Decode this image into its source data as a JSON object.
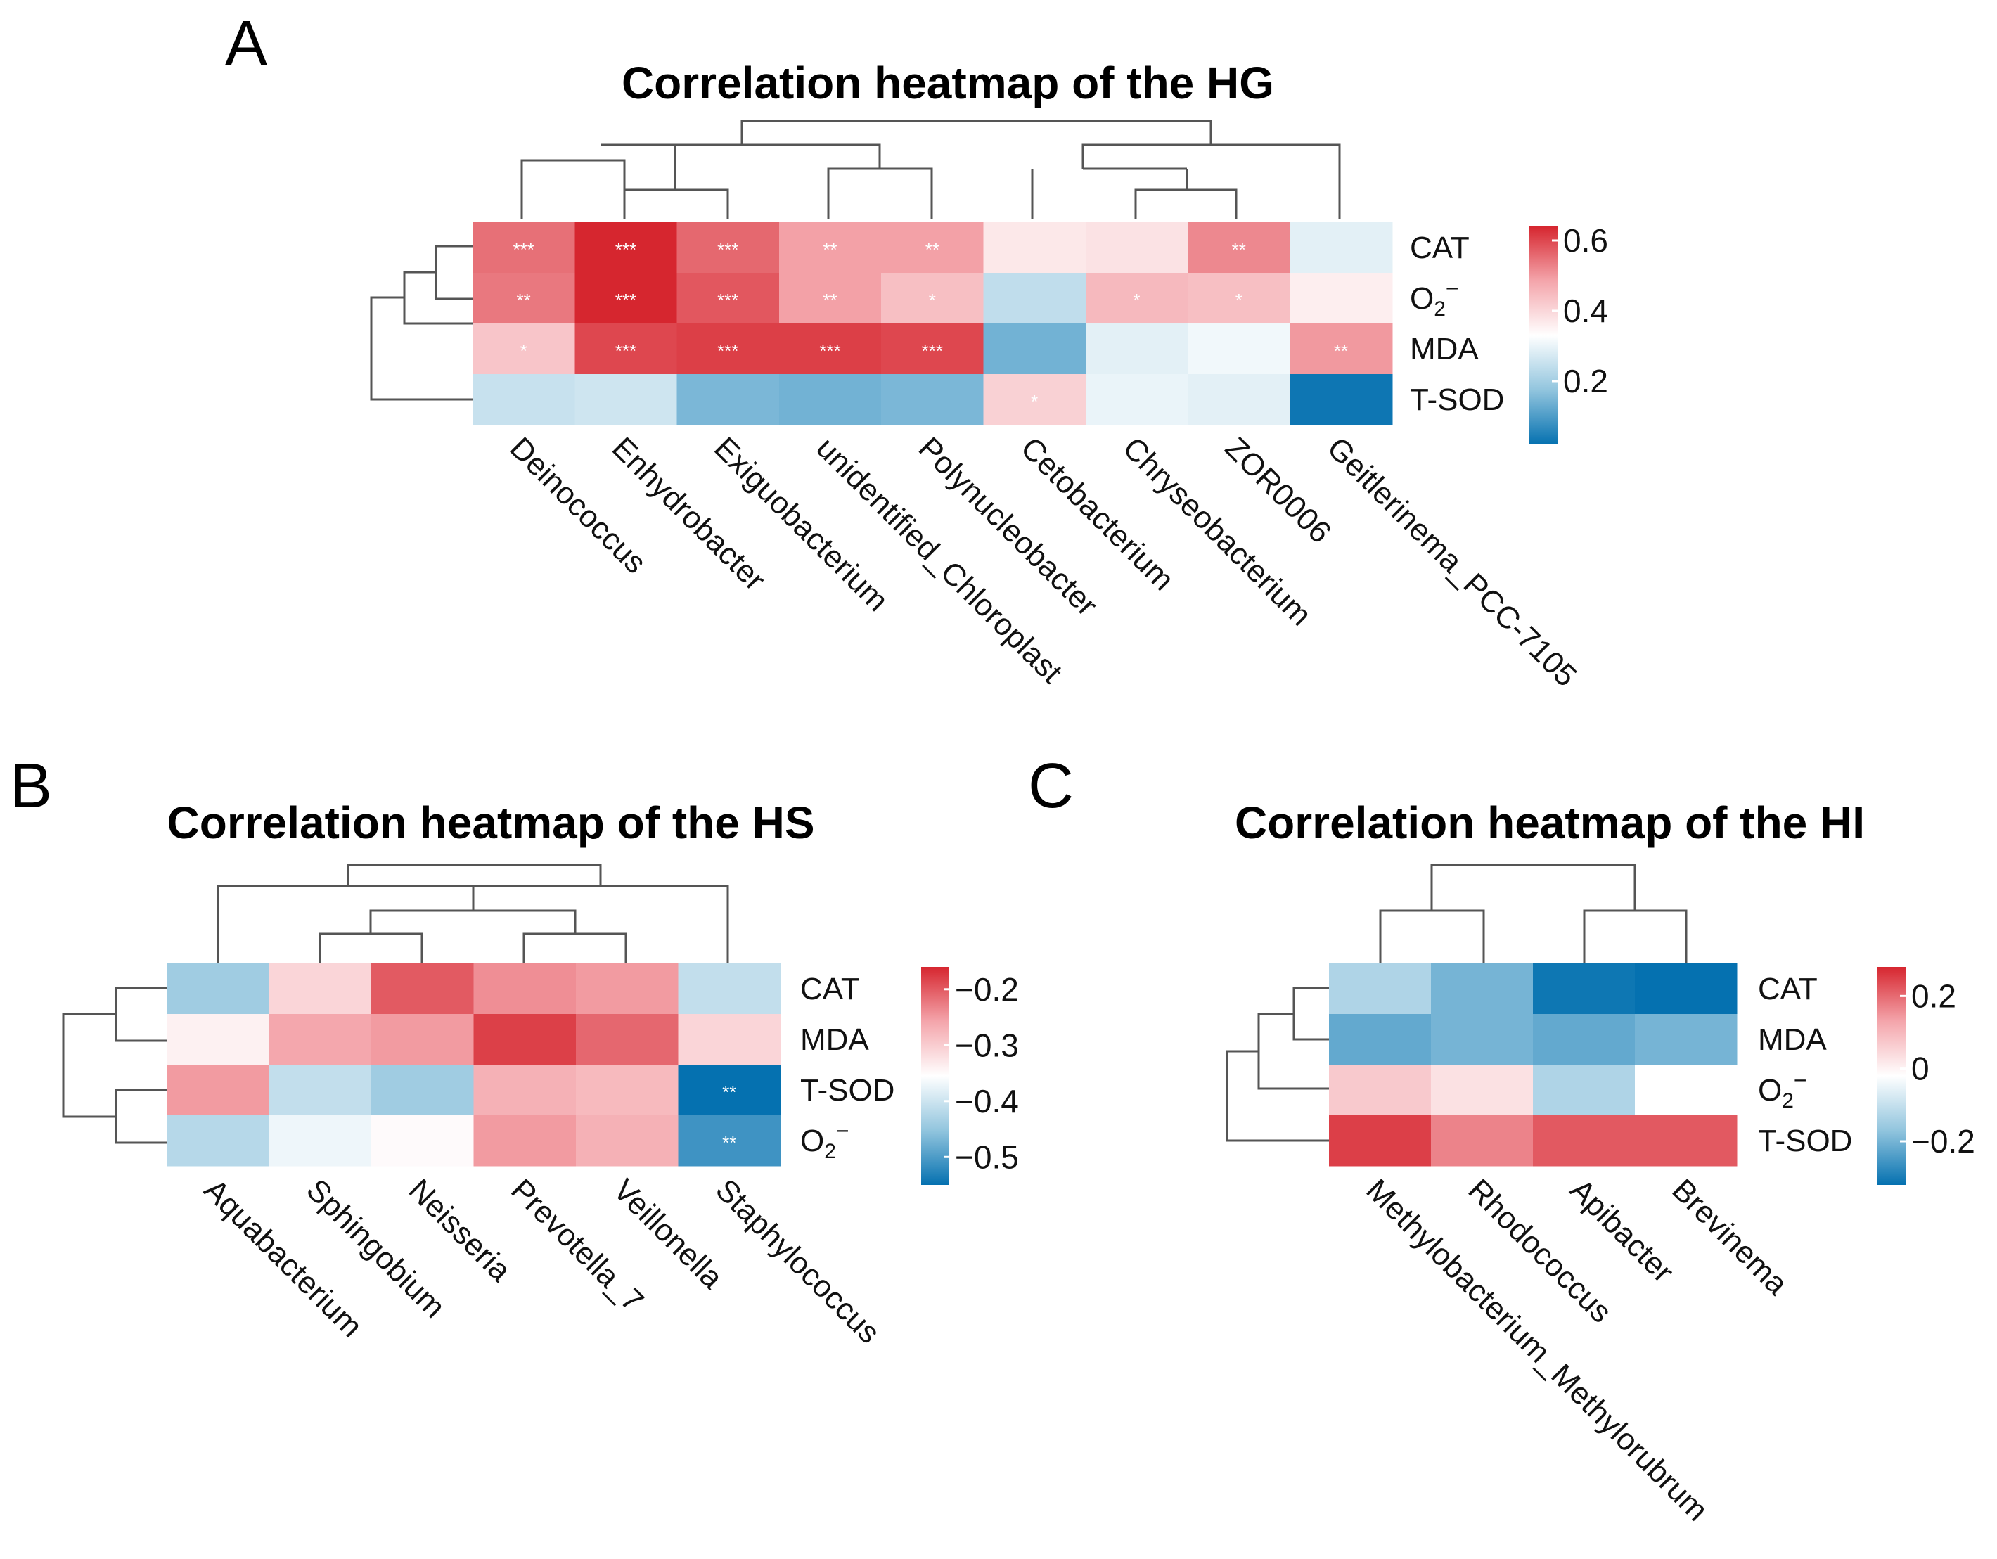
{
  "colors": {
    "low": "#0571b0",
    "mid": "#ffffff",
    "high": "#d6262f"
  },
  "chart_data": [
    {
      "type": "heatmap",
      "panel": "A",
      "title": "Correlation heatmap of the HG",
      "rows": [
        "CAT",
        "O2−",
        "MDA",
        "T-SOD"
      ],
      "columns": [
        "Deinococcus",
        "Enhydrobacter",
        "Exiguobacterium",
        "unidentified_Chloroplast",
        "Polynucleobacter",
        "Cetobacterium",
        "Chryseobacterium",
        "ZOR0006",
        "Geitlerinema_PCC-7105"
      ],
      "values": [
        [
          0.55,
          0.65,
          0.56,
          0.49,
          0.49,
          0.37,
          0.38,
          0.52,
          0.29
        ],
        [
          0.54,
          0.66,
          0.58,
          0.49,
          0.44,
          0.24,
          0.45,
          0.44,
          0.36
        ],
        [
          0.43,
          0.6,
          0.61,
          0.61,
          0.6,
          0.14,
          0.29,
          0.31,
          0.5
        ],
        [
          0.25,
          0.26,
          0.15,
          0.14,
          0.15,
          0.41,
          0.3,
          0.29,
          0.03
        ]
      ],
      "stars": [
        [
          "***",
          "***",
          "***",
          "**",
          "**",
          "",
          "",
          "**",
          ""
        ],
        [
          "**",
          "***",
          "***",
          "**",
          "*",
          "",
          "*",
          "*",
          ""
        ],
        [
          "*",
          "***",
          "***",
          "***",
          "***",
          "",
          "",
          "",
          "**"
        ],
        [
          "",
          "",
          "",
          "",
          "",
          "*",
          "",
          "",
          ""
        ]
      ],
      "color_range": [
        0.02,
        0.64
      ],
      "legend_ticks": [
        "0.6",
        "0.4",
        "0.2"
      ],
      "legend_tick_values": [
        0.6,
        0.4,
        0.2
      ]
    },
    {
      "type": "heatmap",
      "panel": "B",
      "title": "Correlation heatmap of the HS",
      "rows": [
        "CAT",
        "MDA",
        "T-SOD",
        "O2−"
      ],
      "columns": [
        "Aquabacterium",
        "Sphingobium",
        "Neisseria",
        "Prevotella_7",
        "Veillonella",
        "Staphylococcus"
      ],
      "values": [
        [
          -0.44,
          -0.31,
          -0.2,
          -0.24,
          -0.25,
          -0.41
        ],
        [
          -0.34,
          -0.26,
          -0.25,
          -0.18,
          -0.21,
          -0.31
        ],
        [
          -0.25,
          -0.41,
          -0.44,
          -0.27,
          -0.28,
          -0.55
        ],
        [
          -0.42,
          -0.37,
          -0.35,
          -0.25,
          -0.27,
          -0.51
        ]
      ],
      "stars": [
        [
          "",
          "",
          "",
          "",
          "",
          ""
        ],
        [
          "",
          "",
          "",
          "",
          "",
          ""
        ],
        [
          "",
          "",
          "",
          "",
          "",
          "**"
        ],
        [
          "",
          "",
          "",
          "",
          "",
          "**"
        ]
      ],
      "color_range": [
        -0.55,
        -0.16
      ],
      "legend_ticks": [
        "−0.2",
        "−0.3",
        "−0.4",
        "−0.5"
      ],
      "legend_tick_values": [
        -0.2,
        -0.3,
        -0.4,
        -0.5
      ]
    },
    {
      "type": "heatmap",
      "panel": "C",
      "title": "Correlation heatmap of the HI",
      "rows": [
        "CAT",
        "MDA",
        "O2−",
        "T-SOD"
      ],
      "columns": [
        "Methylobacterium_Methylorubrum",
        "Rhodococcus",
        "Apibacter",
        "Brevinema"
      ],
      "values": [
        [
          -0.13,
          -0.2,
          -0.31,
          -0.32
        ],
        [
          -0.22,
          -0.2,
          -0.22,
          -0.2
        ],
        [
          0.07,
          0.03,
          -0.13,
          -0.02
        ],
        [
          0.25,
          0.17,
          0.22,
          0.22
        ]
      ],
      "stars": [
        [
          "",
          "",
          "",
          ""
        ],
        [
          "",
          "",
          "",
          ""
        ],
        [
          "",
          "",
          "",
          ""
        ],
        [
          "",
          "",
          "",
          ""
        ]
      ],
      "color_range": [
        -0.32,
        0.28
      ],
      "legend_ticks": [
        "0.2",
        "0",
        "−0.2"
      ],
      "legend_tick_values": [
        0.2,
        0,
        -0.2
      ]
    }
  ]
}
